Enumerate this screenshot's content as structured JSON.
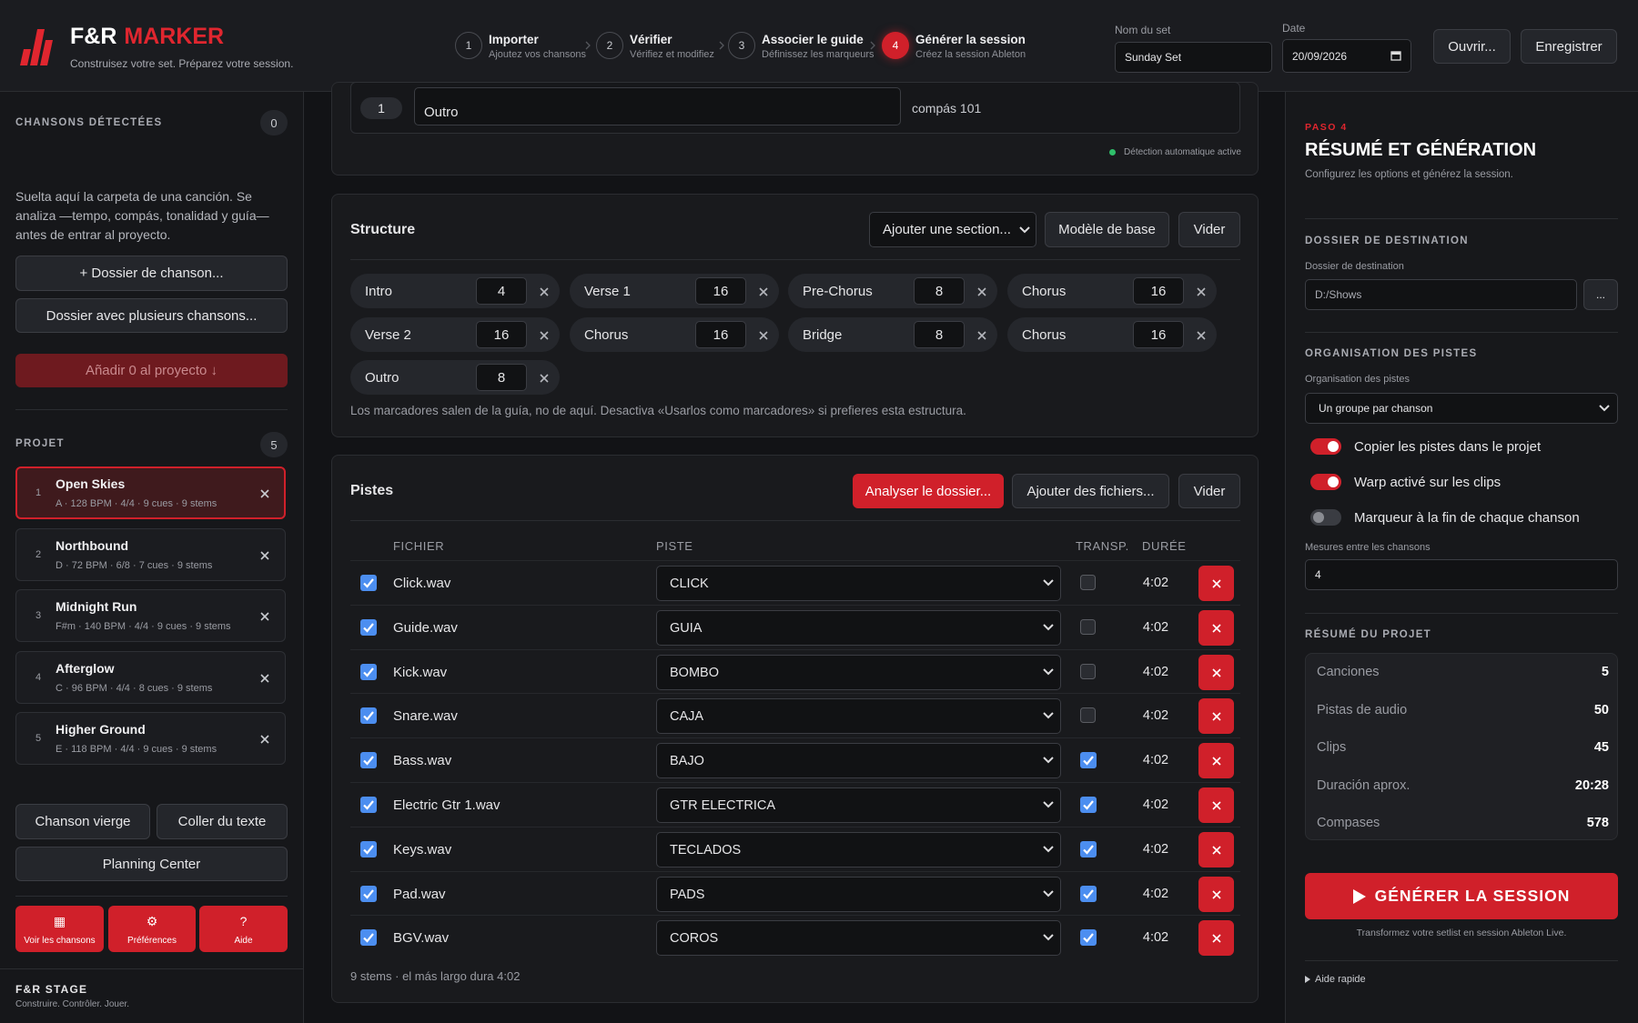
{
  "header": {
    "brand_prefix": "F&R",
    "brand_accent": "MARKER",
    "tagline": "Construisez votre set. Préparez votre session.",
    "steps": [
      {
        "number": 1,
        "title": "Importer",
        "subtitle": "Ajoutez vos chansons",
        "active": false
      },
      {
        "number": 2,
        "title": "Vérifier",
        "subtitle": "Vérifiez et modifiez",
        "active": false
      },
      {
        "number": 3,
        "title": "Associer le guide",
        "subtitle": "Définissez les marqueurs",
        "active": false
      },
      {
        "number": 4,
        "title": "Générer la session",
        "subtitle": "Créez la session Ableton",
        "active": true
      }
    ],
    "set_name_label": "Nom du set",
    "set_name": "Sunday Set",
    "date_label": "Date",
    "date": "20/09/2026",
    "open": "Ouvrir...",
    "save": "Enregistrer"
  },
  "sidebar": {
    "detected_title": "CHANSONS DÉTECTÉES",
    "detected_count": 0,
    "drop_hint": "Suelta aquí la carpeta de una canción. Se analiza —tempo, compás, tonalidad y guía— antes de entrar al proyecto.",
    "add_folder": "+ Dossier de chanson...",
    "multi_folder": "Dossier avec plusieurs chansons...",
    "add_to_project": "Añadir 0 al proyecto ↓",
    "project_title": "PROJET",
    "project_count": 5,
    "songs": [
      {
        "number": 1,
        "title": "Open Skies",
        "meta": "A · 128 BPM · 4/4 · 9 cues · 9 stems",
        "selected": true
      },
      {
        "number": 2,
        "title": "Northbound",
        "meta": "D · 72 BPM · 6/8 · 7 cues · 9 stems",
        "selected": false
      },
      {
        "number": 3,
        "title": "Midnight Run",
        "meta": "F#m · 140 BPM · 4/4 · 9 cues · 9 stems",
        "selected": false
      },
      {
        "number": 4,
        "title": "Afterglow",
        "meta": "C · 96 BPM · 4/4 · 8 cues · 9 stems",
        "selected": false
      },
      {
        "number": 5,
        "title": "Higher Ground",
        "meta": "E · 118 BPM · 4/4 · 9 cues · 9 stems",
        "selected": false
      }
    ],
    "blank_song": "Chanson vierge",
    "paste_text": "Coller du texte",
    "planning_center": "Planning Center",
    "nav": [
      {
        "icon": "▦",
        "label": "Voir les chansons"
      },
      {
        "icon": "⚙",
        "label": "Préférences"
      },
      {
        "icon": "?",
        "label": "Aide"
      }
    ],
    "footer_title": "F&R STAGE",
    "footer_subtitle": "Construire. Contrôler. Jouer."
  },
  "main": {
    "marker_row": {
      "number": 1,
      "name": "Outro",
      "position": "compás 101"
    },
    "auto_detect": "Détection automatique active",
    "structure": {
      "title": "Structure",
      "add_section": "Ajouter une section...",
      "base_model": "Modèle de base",
      "clear": "Vider",
      "sections": [
        {
          "name": "Intro",
          "bars": 4
        },
        {
          "name": "Verse 1",
          "bars": 16
        },
        {
          "name": "Pre-Chorus",
          "bars": 8
        },
        {
          "name": "Chorus",
          "bars": 16
        },
        {
          "name": "Verse 2",
          "bars": 16
        },
        {
          "name": "Chorus",
          "bars": 16
        },
        {
          "name": "Bridge",
          "bars": 8
        },
        {
          "name": "Chorus",
          "bars": 16
        },
        {
          "name": "Outro",
          "bars": 8
        }
      ],
      "note": "Los marcadores salen de la guía, no de aquí. Desactiva «Usarlos como marcadores» si prefieres esta estructura."
    },
    "tracks": {
      "title": "Pistes",
      "analyze": "Analyser le dossier...",
      "add_files": "Ajouter des fichiers...",
      "clear": "Vider",
      "columns": [
        "FICHIER",
        "PISTE",
        "TRANSP.",
        "DURÉE"
      ],
      "rows": [
        {
          "included": true,
          "file": "Click.wav",
          "track": "CLICK",
          "transpose": false,
          "duration": "4:02"
        },
        {
          "included": true,
          "file": "Guide.wav",
          "track": "GUIA",
          "transpose": false,
          "duration": "4:02"
        },
        {
          "included": true,
          "file": "Kick.wav",
          "track": "BOMBO",
          "transpose": false,
          "duration": "4:02"
        },
        {
          "included": true,
          "file": "Snare.wav",
          "track": "CAJA",
          "transpose": false,
          "duration": "4:02"
        },
        {
          "included": true,
          "file": "Bass.wav",
          "track": "BAJO",
          "transpose": true,
          "duration": "4:02"
        },
        {
          "included": true,
          "file": "Electric Gtr 1.wav",
          "track": "GTR ELECTRICA",
          "transpose": true,
          "duration": "4:02"
        },
        {
          "included": true,
          "file": "Keys.wav",
          "track": "TECLADOS",
          "transpose": true,
          "duration": "4:02"
        },
        {
          "included": true,
          "file": "Pad.wav",
          "track": "PADS",
          "transpose": true,
          "duration": "4:02"
        },
        {
          "included": true,
          "file": "BGV.wav",
          "track": "COROS",
          "transpose": true,
          "duration": "4:02"
        }
      ],
      "footer": "9 stems · el más largo dura 4:02"
    }
  },
  "panel": {
    "step_label": "PASO 4",
    "title": "RÉSUMÉ ET GÉNÉRATION",
    "subtitle": "Configurez les options et générez la session.",
    "destination_heading": "DOSSIER DE DESTINATION",
    "destination_label": "Dossier de destination",
    "destination_value": "D:/Shows",
    "browse": "...",
    "organization_heading": "ORGANISATION DES PISTES",
    "organization_label": "Organisation des pistes",
    "organization_value": "Un groupe par chanson",
    "toggles": [
      {
        "label": "Copier les pistes dans le projet",
        "on": true
      },
      {
        "label": "Warp activé sur les clips",
        "on": true
      },
      {
        "label": "Marqueur à la fin de chaque chanson",
        "on": false
      }
    ],
    "bars_between_label": "Mesures entre les chansons",
    "bars_between": 4,
    "summary_heading": "RÉSUMÉ DU PROJET",
    "summary": [
      {
        "label": "Canciones",
        "value": 5
      },
      {
        "label": "Pistas de audio",
        "value": 50
      },
      {
        "label": "Clips",
        "value": 45
      },
      {
        "label": "Duración aprox.",
        "value": "20:28"
      },
      {
        "label": "Compases",
        "value": 578
      }
    ],
    "generate": "GÉNÉRER LA SESSION",
    "generate_note": "Transformez votre setlist en session Ableton Live.",
    "quick_help": "Aide rapide"
  }
}
